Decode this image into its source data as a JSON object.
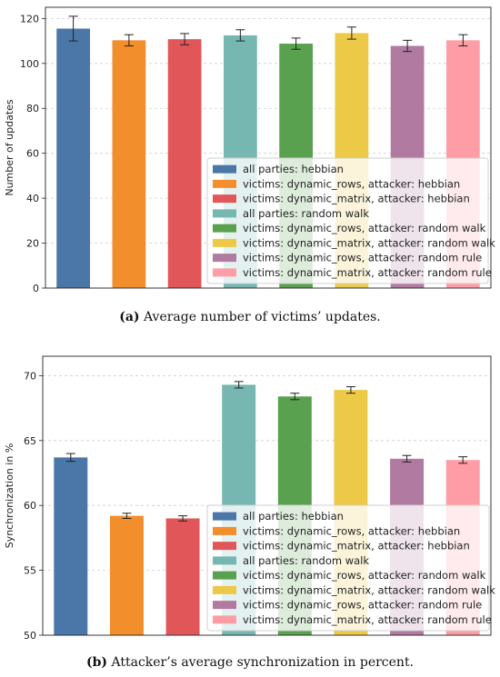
{
  "colors": [
    "#4a76a8",
    "#f28e2b",
    "#e15759",
    "#76b7b2",
    "#59a14f",
    "#edc948",
    "#b07aa1",
    "#ff9da7"
  ],
  "legend_entries": [
    "all parties: hebbian",
    "victims: dynamic_rows, attacker: hebbian",
    "victims: dynamic_matrix, attacker: hebbian",
    "all parties: random walk",
    "victims: dynamic_rows, attacker: random walk",
    "victims: dynamic_matrix, attacker: random walk",
    "victims: dynamic_rows, attacker: random rule",
    "victims: dynamic_matrix, attacker: random rule"
  ],
  "captions": {
    "a_letter": "(a)",
    "a_text": " Average number of victims’ updates.",
    "b_letter": "(b)",
    "b_text": " Attacker’s average synchronization in percent."
  },
  "chart_data": [
    {
      "type": "bar",
      "ylabel": "Number of updates",
      "xlabel": "",
      "ylim": [
        0,
        125
      ],
      "yticks": [
        0,
        20,
        40,
        60,
        80,
        100,
        120
      ],
      "grid": "horizontal dashed",
      "legend_position": "lower-right",
      "series": [
        {
          "name": "all parties: hebbian",
          "value": 115.5,
          "error": 5.5
        },
        {
          "name": "victims: dynamic_rows, attacker: hebbian",
          "value": 110.3,
          "error": 2.5
        },
        {
          "name": "victims: dynamic_matrix, attacker: hebbian",
          "value": 110.8,
          "error": 2.5
        },
        {
          "name": "all parties: random walk",
          "value": 112.5,
          "error": 2.5
        },
        {
          "name": "victims: dynamic_rows, attacker: random walk",
          "value": 108.8,
          "error": 2.5
        },
        {
          "name": "victims: dynamic_matrix, attacker: random walk",
          "value": 113.5,
          "error": 2.7
        },
        {
          "name": "victims: dynamic_rows, attacker: random rule",
          "value": 107.8,
          "error": 2.5
        },
        {
          "name": "victims: dynamic_matrix, attacker: random rule",
          "value": 110.3,
          "error": 2.5
        }
      ]
    },
    {
      "type": "bar",
      "ylabel": "Synchronization in %",
      "xlabel": "",
      "ylim": [
        50,
        71.5
      ],
      "yticks": [
        50,
        55,
        60,
        65,
        70
      ],
      "grid": "horizontal dashed",
      "legend_position": "lower-right",
      "series": [
        {
          "name": "all parties: hebbian",
          "value": 63.7,
          "error": 0.3
        },
        {
          "name": "victims: dynamic_rows, attacker: hebbian",
          "value": 59.2,
          "error": 0.2
        },
        {
          "name": "victims: dynamic_matrix, attacker: hebbian",
          "value": 59.0,
          "error": 0.2
        },
        {
          "name": "all parties: random walk",
          "value": 69.3,
          "error": 0.25
        },
        {
          "name": "victims: dynamic_rows, attacker: random walk",
          "value": 68.4,
          "error": 0.25
        },
        {
          "name": "victims: dynamic_matrix, attacker: random walk",
          "value": 68.9,
          "error": 0.25
        },
        {
          "name": "victims: dynamic_rows, attacker: random rule",
          "value": 63.6,
          "error": 0.25
        },
        {
          "name": "victims: dynamic_matrix, attacker: random rule",
          "value": 63.5,
          "error": 0.25
        }
      ]
    }
  ]
}
